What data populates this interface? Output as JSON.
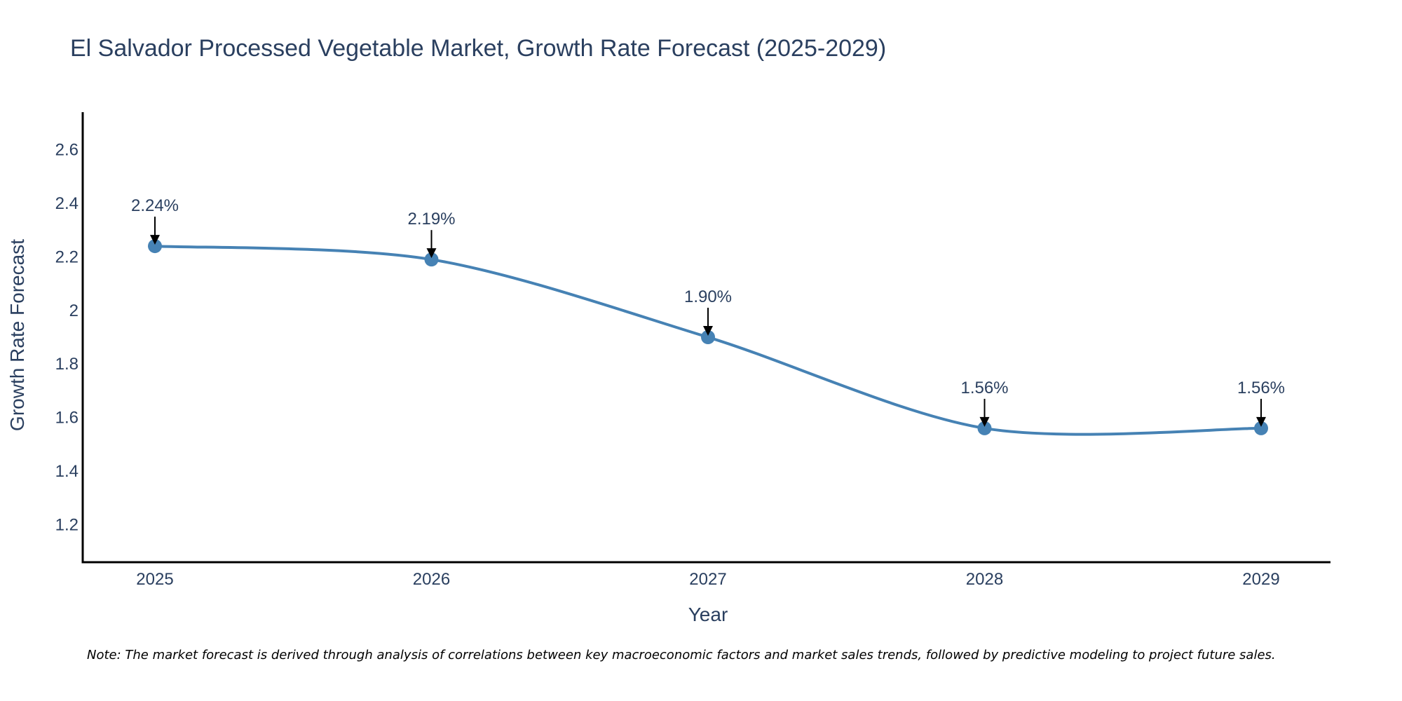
{
  "chart_data": {
    "type": "line",
    "title": "El Salvador Processed Vegetable Market, Growth Rate Forecast (2025-2029)",
    "xlabel": "Year",
    "ylabel": "Growth Rate Forecast",
    "categories": [
      "2025",
      "2026",
      "2027",
      "2028",
      "2029"
    ],
    "series": [
      {
        "name": "Growth Rate Forecast",
        "values": [
          2.24,
          2.19,
          1.9,
          1.56,
          1.56
        ],
        "labels": [
          "2.24%",
          "2.19%",
          "1.90%",
          "1.56%",
          "1.56%"
        ]
      }
    ],
    "ylim": [
      1.06,
      2.74
    ],
    "yticks": [
      1.2,
      1.4,
      1.6,
      1.8,
      2,
      2.2,
      2.4,
      2.6
    ],
    "ytick_labels": [
      "1.2",
      "1.4",
      "1.6",
      "1.8",
      "2",
      "2.2",
      "2.4",
      "2.6"
    ],
    "grid": false,
    "legend": "none",
    "line_color": "#4682b4",
    "annotation_color": "#000000",
    "note": "Note: The market forecast is derived through analysis of correlations between key macroeconomic factors and market sales trends, followed by predictive modeling to project future sales."
  }
}
